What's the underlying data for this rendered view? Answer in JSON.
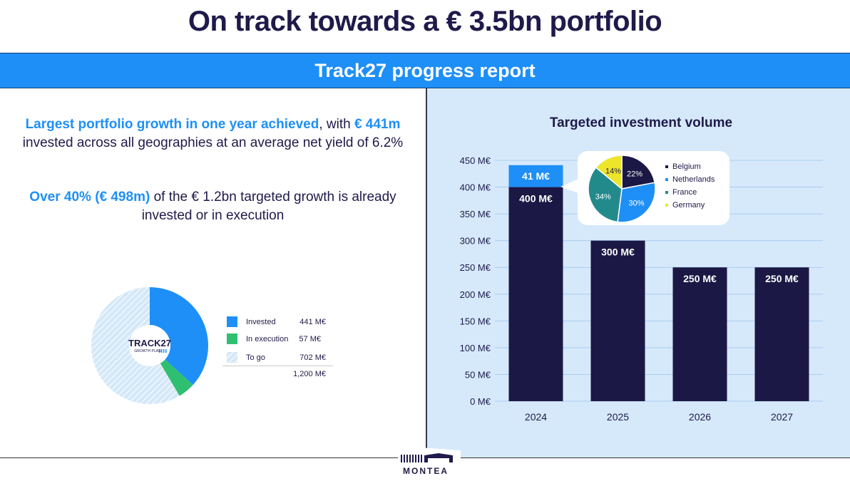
{
  "header": {
    "title": "On track towards a € 3.5bn portfolio",
    "banner": "Track27 progress report"
  },
  "left": {
    "p1_highlight": "Largest portfolio growth in one year achieved",
    "p1_text1": ", with ",
    "p1_amount": "€ 441m",
    "p1_text2": "invested across all geographies at an average net yield of 6.2%",
    "p2_highlight": "Over 40% (€ 498m)",
    "p2_text1": " of the € 1.2bn targeted growth is already",
    "p2_text2": "invested or in execution",
    "donut_center_title": "TRACK27",
    "donut_center_sub": "GROWTH PLAN",
    "legend": [
      {
        "label": "Invested",
        "value": "441 M€",
        "color": "#1e8ff7"
      },
      {
        "label": "In execution",
        "value": "57 M€",
        "color": "#2fbf71"
      },
      {
        "label": "To go",
        "value": "702 M€",
        "color": "#b9d9f3"
      }
    ],
    "total": "1,200 M€"
  },
  "chart_data": [
    {
      "type": "bar",
      "title": "Targeted investment volume",
      "categories": [
        "2024",
        "2025",
        "2026",
        "2027"
      ],
      "series": [
        {
          "values": [
            400,
            300,
            250,
            250
          ],
          "color": "#1c1845"
        },
        {
          "values": [
            41,
            0,
            0,
            0
          ],
          "color": "#1e8ff7"
        }
      ],
      "data_labels": [
        [
          "400 M€",
          "300 M€",
          "250 M€",
          "250 M€"
        ],
        [
          "41 M€",
          "",
          "",
          ""
        ]
      ],
      "ylim": [
        0,
        450
      ],
      "yticks": [
        0,
        50,
        100,
        150,
        200,
        250,
        300,
        350,
        400,
        450
      ],
      "ytick_labels": [
        "0 M€",
        "50 M€",
        "100 M€",
        "150 M€",
        "200 M€",
        "250 M€",
        "300 M€",
        "350 M€",
        "400 M€",
        "450 M€"
      ],
      "grid": true
    },
    {
      "type": "pie",
      "categories": [
        "Belgium",
        "Netherlands",
        "France",
        "Germany"
      ],
      "values": [
        22,
        30,
        34,
        14
      ],
      "labels": [
        "22%",
        "30%",
        "34%",
        "14%"
      ],
      "colors": [
        "#1c1845",
        "#1e8ff7",
        "#238a8c",
        "#ece52a"
      ],
      "legend_position": "right"
    },
    {
      "type": "pie",
      "categories": [
        "Invested",
        "In execution",
        "To go"
      ],
      "values": [
        441,
        57,
        702
      ],
      "colors": [
        "#1e8ff7",
        "#2fbf71",
        "#b9d9f3"
      ]
    }
  ],
  "footer": {
    "logo": "MONTEA"
  }
}
